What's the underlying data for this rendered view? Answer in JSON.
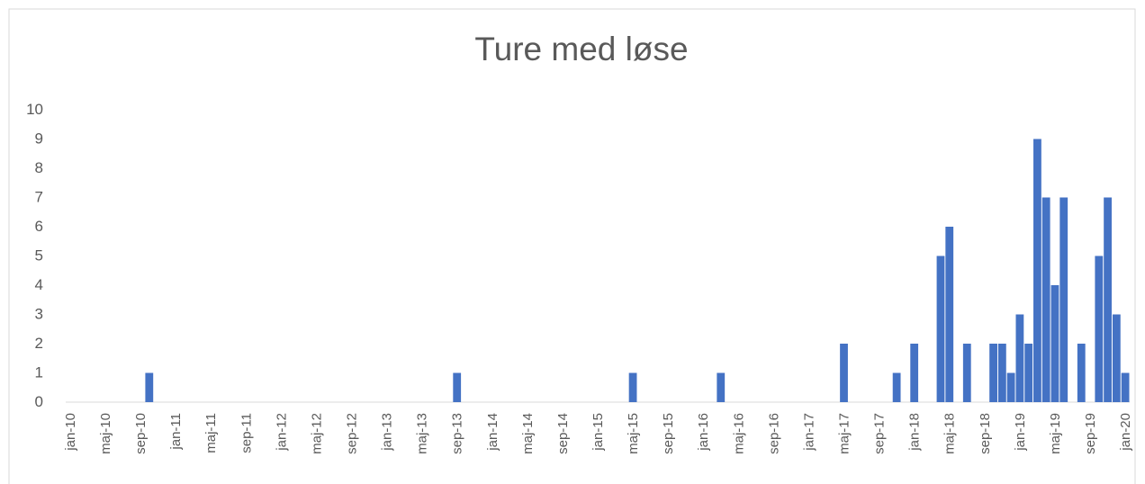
{
  "chart_data": {
    "type": "bar",
    "title": "Ture med løse",
    "categories": [
      "jan-10",
      null,
      null,
      null,
      "maj-10",
      null,
      null,
      null,
      "sep-10",
      null,
      null,
      null,
      "jan-11",
      null,
      null,
      null,
      "maj-11",
      null,
      null,
      null,
      "sep-11",
      null,
      null,
      null,
      "jan-12",
      null,
      null,
      null,
      "maj-12",
      null,
      null,
      null,
      "sep-12",
      null,
      null,
      null,
      "jan-13",
      null,
      null,
      null,
      "maj-13",
      null,
      null,
      null,
      "sep-13",
      null,
      null,
      null,
      "jan-14",
      null,
      null,
      null,
      "maj-14",
      null,
      null,
      null,
      "sep-14",
      null,
      null,
      null,
      "jan-15",
      null,
      null,
      null,
      "maj-15",
      null,
      null,
      null,
      "sep-15",
      null,
      null,
      null,
      "jan-16",
      null,
      null,
      null,
      "maj-16",
      null,
      null,
      null,
      "sep-16",
      null,
      null,
      null,
      "jan-17",
      null,
      null,
      null,
      "maj-17",
      null,
      null,
      null,
      "sep-17",
      null,
      null,
      null,
      "jan-18",
      null,
      null,
      null,
      "maj-18",
      null,
      null,
      null,
      "sep-18",
      null,
      null,
      null,
      "jan-19",
      null,
      null,
      null,
      "maj-19",
      null,
      null,
      null,
      "sep-19",
      null,
      null,
      null,
      "jan-20"
    ],
    "values": [
      0,
      0,
      0,
      0,
      0,
      0,
      0,
      0,
      0,
      1,
      0,
      0,
      0,
      0,
      0,
      0,
      0,
      0,
      0,
      0,
      0,
      0,
      0,
      0,
      0,
      0,
      0,
      0,
      0,
      0,
      0,
      0,
      0,
      0,
      0,
      0,
      0,
      0,
      0,
      0,
      0,
      0,
      0,
      0,
      1,
      0,
      0,
      0,
      0,
      0,
      0,
      0,
      0,
      0,
      0,
      0,
      0,
      0,
      0,
      0,
      0,
      0,
      0,
      0,
      1,
      0,
      0,
      0,
      0,
      0,
      0,
      0,
      0,
      0,
      1,
      0,
      0,
      0,
      0,
      0,
      0,
      0,
      0,
      0,
      0,
      0,
      0,
      0,
      2,
      0,
      0,
      0,
      0,
      0,
      1,
      0,
      2,
      0,
      0,
      5,
      6,
      0,
      2,
      0,
      0,
      2,
      2,
      1,
      3,
      2,
      9,
      7,
      4,
      7,
      0,
      2,
      0,
      5,
      7,
      3,
      1
    ],
    "color": "#4472c4",
    "ylim": [
      0,
      10
    ],
    "yticks": [
      0,
      1,
      2,
      3,
      4,
      5,
      6,
      7,
      8,
      9,
      10
    ],
    "grid": false
  }
}
